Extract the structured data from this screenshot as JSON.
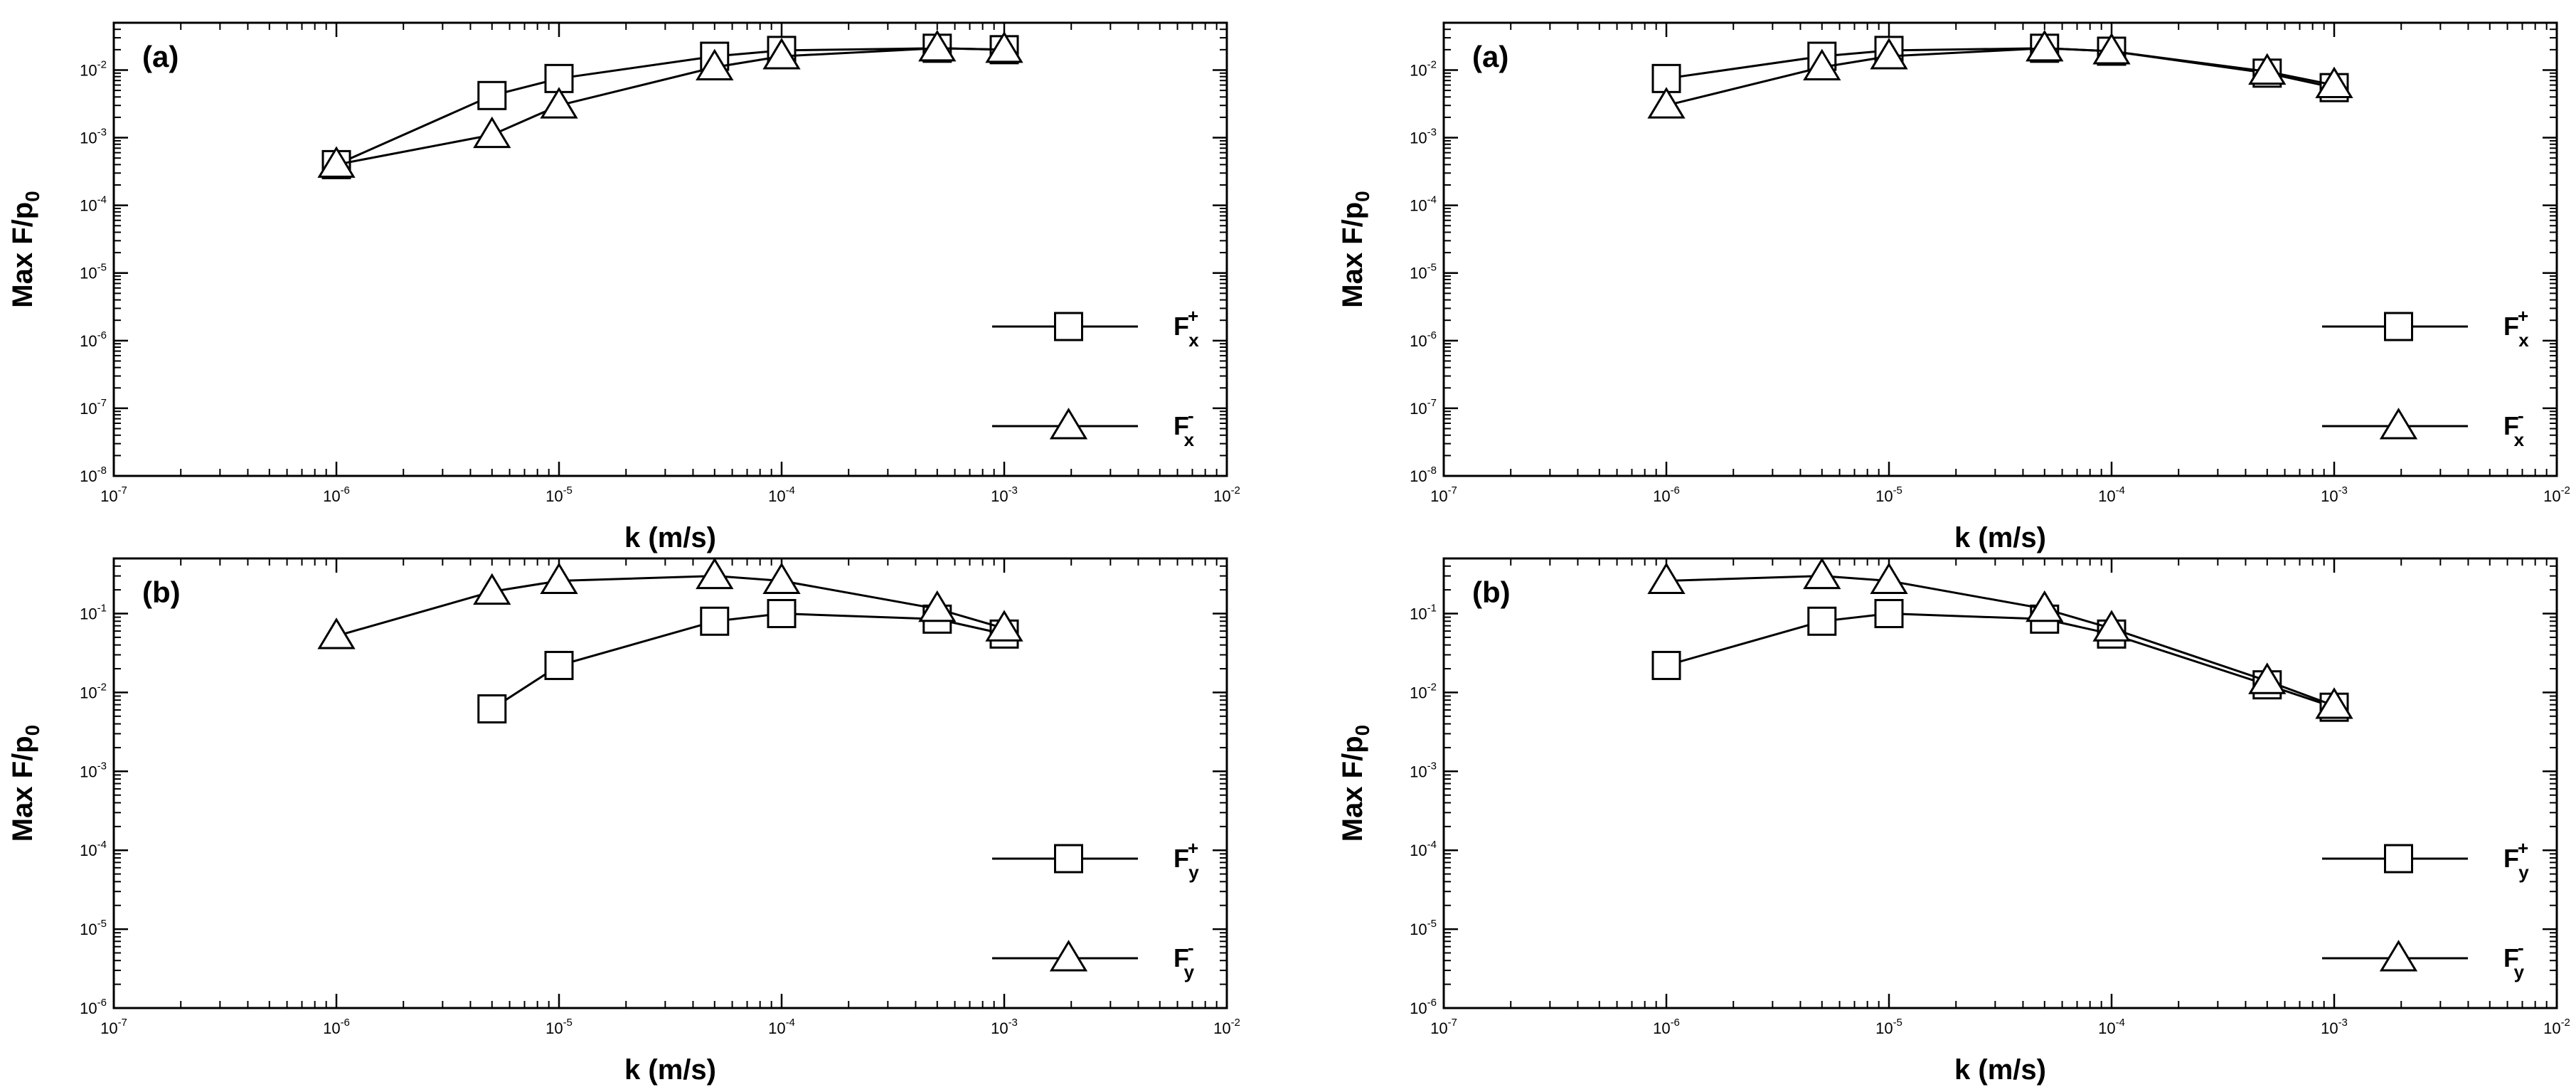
{
  "chart_data": [
    {
      "type": "line",
      "panel_label": "(a)",
      "xlabel": "k (m/s)",
      "ylabel": "Max F/p",
      "ylabel_sub": "0",
      "x_scale": "log",
      "y_scale": "log",
      "xlim": [
        1e-07,
        0.01
      ],
      "ylim": [
        1e-08,
        0.05
      ],
      "x_ticks": [
        1e-07,
        1e-06,
        1e-05,
        0.0001,
        0.001,
        0.01
      ],
      "y_ticks": [
        1e-08,
        1e-07,
        1e-06,
        1e-05,
        0.0001,
        0.001,
        0.01
      ],
      "legend_position": "lower-right",
      "series": [
        {
          "name": "F",
          "name_sub": "x",
          "name_sup": "+",
          "marker": "square",
          "x": [
            1e-06,
            5e-06,
            1e-05,
            5e-05,
            0.0001,
            0.0005,
            0.001
          ],
          "y": [
            0.0004,
            0.0042,
            0.0075,
            0.016,
            0.0195,
            0.021,
            0.02
          ]
        },
        {
          "name": "F",
          "name_sub": "x",
          "name_sup": "-",
          "marker": "triangle",
          "x": [
            1e-06,
            5e-06,
            1e-05,
            5e-05,
            0.0001,
            0.0005,
            0.001
          ],
          "y": [
            0.0004,
            0.0011,
            0.003,
            0.011,
            0.016,
            0.021,
            0.02
          ]
        }
      ]
    },
    {
      "type": "line",
      "panel_label": "(a)",
      "xlabel": "k (m/s)",
      "ylabel": "Max F/p",
      "ylabel_sub": "0",
      "x_scale": "log",
      "y_scale": "log",
      "xlim": [
        1e-07,
        0.01
      ],
      "ylim": [
        1e-08,
        0.05
      ],
      "x_ticks": [
        1e-07,
        1e-06,
        1e-05,
        0.0001,
        0.001,
        0.01
      ],
      "y_ticks": [
        1e-08,
        1e-07,
        1e-06,
        1e-05,
        0.0001,
        0.001,
        0.01
      ],
      "legend_position": "lower-right",
      "series": [
        {
          "name": "F",
          "name_sub": "x",
          "name_sup": "+",
          "marker": "square",
          "x": [
            1e-06,
            5e-06,
            1e-05,
            5e-05,
            0.0001,
            0.0005,
            0.001
          ],
          "y": [
            0.0075,
            0.016,
            0.0195,
            0.021,
            0.019,
            0.009,
            0.0055
          ]
        },
        {
          "name": "F",
          "name_sub": "x",
          "name_sup": "-",
          "marker": "triangle",
          "x": [
            1e-06,
            5e-06,
            1e-05,
            5e-05,
            0.0001,
            0.0005,
            0.001
          ],
          "y": [
            0.003,
            0.011,
            0.016,
            0.021,
            0.019,
            0.0095,
            0.006
          ]
        }
      ]
    },
    {
      "type": "line",
      "panel_label": "(b)",
      "xlabel": "k (m/s)",
      "ylabel": "Max F/p",
      "ylabel_sub": "0",
      "x_scale": "log",
      "y_scale": "log",
      "xlim": [
        1e-07,
        0.01
      ],
      "ylim": [
        1e-06,
        0.5
      ],
      "x_ticks": [
        1e-07,
        1e-06,
        1e-05,
        0.0001,
        0.001,
        0.01
      ],
      "y_ticks": [
        1e-06,
        1e-05,
        0.0001,
        0.001,
        0.01,
        0.1
      ],
      "legend_position": "lower-right",
      "series": [
        {
          "name": "F",
          "name_sub": "y",
          "name_sup": "+",
          "marker": "square",
          "x": [
            5e-06,
            1e-05,
            5e-05,
            0.0001,
            0.0005,
            0.001
          ],
          "y": [
            0.0062,
            0.022,
            0.08,
            0.1,
            0.085,
            0.055
          ]
        },
        {
          "name": "F",
          "name_sub": "y",
          "name_sup": "-",
          "marker": "triangle",
          "x": [
            1e-06,
            5e-06,
            1e-05,
            5e-05,
            0.0001,
            0.0005,
            0.001
          ],
          "y": [
            0.052,
            0.19,
            0.26,
            0.3,
            0.26,
            0.115,
            0.065
          ]
        }
      ]
    },
    {
      "type": "line",
      "panel_label": "(b)",
      "xlabel": "k (m/s)",
      "ylabel": "Max F/p",
      "ylabel_sub": "0",
      "x_scale": "log",
      "y_scale": "log",
      "xlim": [
        1e-07,
        0.01
      ],
      "ylim": [
        1e-06,
        0.5
      ],
      "x_ticks": [
        1e-07,
        1e-06,
        1e-05,
        0.0001,
        0.001,
        0.01
      ],
      "y_ticks": [
        1e-06,
        1e-05,
        0.0001,
        0.001,
        0.01,
        0.1
      ],
      "legend_position": "lower-right",
      "series": [
        {
          "name": "F",
          "name_sub": "y",
          "name_sup": "+",
          "marker": "square",
          "x": [
            1e-06,
            5e-06,
            1e-05,
            5e-05,
            0.0001,
            0.0005,
            0.001
          ],
          "y": [
            0.022,
            0.08,
            0.1,
            0.085,
            0.055,
            0.0125,
            0.0065
          ]
        },
        {
          "name": "F",
          "name_sub": "y",
          "name_sup": "-",
          "marker": "triangle",
          "x": [
            1e-06,
            5e-06,
            1e-05,
            5e-05,
            0.0001,
            0.0005,
            0.001
          ],
          "y": [
            0.26,
            0.3,
            0.26,
            0.115,
            0.065,
            0.014,
            0.0068
          ]
        }
      ]
    }
  ]
}
